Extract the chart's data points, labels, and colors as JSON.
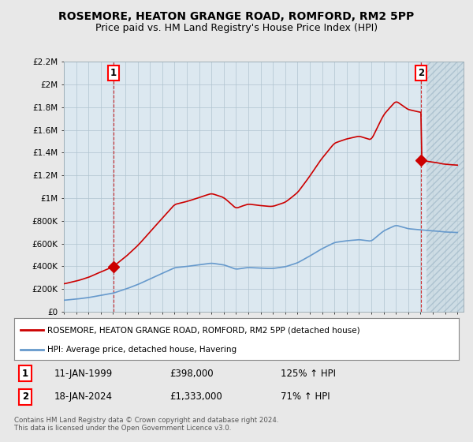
{
  "title": "ROSEMORE, HEATON GRANGE ROAD, ROMFORD, RM2 5PP",
  "subtitle": "Price paid vs. HM Land Registry's House Price Index (HPI)",
  "title_fontsize": 10,
  "subtitle_fontsize": 9,
  "background_color": "#e8e8e8",
  "plot_bg_color": "#dce8f0",
  "grid_color": "#b0c4d0",
  "red_color": "#cc0000",
  "blue_color": "#6699cc",
  "ylim": [
    0,
    2200000
  ],
  "yticks": [
    0,
    200000,
    400000,
    600000,
    800000,
    1000000,
    1200000,
    1400000,
    1600000,
    1800000,
    2000000,
    2200000
  ],
  "ytick_labels": [
    "£0",
    "£200K",
    "£400K",
    "£600K",
    "£800K",
    "£1M",
    "£1.2M",
    "£1.4M",
    "£1.6M",
    "£1.8M",
    "£2M",
    "£2.2M"
  ],
  "xlim_start": 1995.3,
  "xlim_end": 2027.5,
  "xticks": [
    1995,
    1996,
    1997,
    1998,
    1999,
    2000,
    2001,
    2002,
    2003,
    2004,
    2005,
    2006,
    2007,
    2008,
    2009,
    2010,
    2011,
    2012,
    2013,
    2014,
    2015,
    2016,
    2017,
    2018,
    2019,
    2020,
    2021,
    2022,
    2023,
    2024,
    2025,
    2026,
    2027
  ],
  "sale1_x": 1999.04,
  "sale1_y": 398000,
  "sale1_label": "1",
  "sale2_x": 2024.04,
  "sale2_y": 1333000,
  "sale2_label": "2",
  "legend_line1": "ROSEMORE, HEATON GRANGE ROAD, ROMFORD, RM2 5PP (detached house)",
  "legend_line2": "HPI: Average price, detached house, Havering",
  "table_row1_num": "1",
  "table_row1_date": "11-JAN-1999",
  "table_row1_price": "£398,000",
  "table_row1_hpi": "125% ↑ HPI",
  "table_row2_num": "2",
  "table_row2_date": "18-JAN-2024",
  "table_row2_price": "£1,333,000",
  "table_row2_hpi": "71% ↑ HPI",
  "footer": "Contains HM Land Registry data © Crown copyright and database right 2024.\nThis data is licensed under the Open Government Licence v3.0."
}
